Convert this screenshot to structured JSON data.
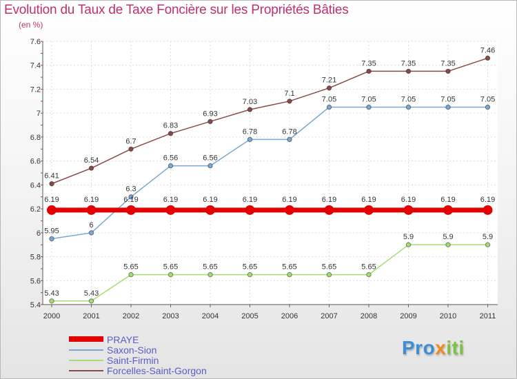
{
  "chart_data": {
    "type": "line",
    "title": "Evolution du Taux de Taxe Foncière sur les Propriétés Bâties",
    "unit_label": "(en %)",
    "xlabel": "",
    "ylabel": "",
    "categories": [
      "2000",
      "2001",
      "2002",
      "2003",
      "2004",
      "2005",
      "2006",
      "2007",
      "2008",
      "2009",
      "2010",
      "2011"
    ],
    "ylim": [
      5.4,
      7.6
    ],
    "yticks": [
      5.4,
      5.6,
      5.8,
      6,
      6.2,
      6.4,
      6.6,
      6.8,
      7,
      7.2,
      7.4,
      7.6
    ],
    "ytick_labels": [
      "5.4",
      "5.6",
      "5.8",
      "6",
      "6.2",
      "6.4",
      "6.6",
      "6.8",
      "7",
      "7.2",
      "7.4",
      "7.6"
    ],
    "legend_position": "bottom-left",
    "series": [
      {
        "name": "PRAYE",
        "color": "#e30000",
        "values": [
          6.19,
          6.19,
          6.19,
          6.19,
          6.19,
          6.19,
          6.19,
          6.19,
          6.19,
          6.19,
          6.19,
          6.19
        ],
        "labels": [
          "6.19",
          "6.19",
          "6.19",
          "6.19",
          "6.19",
          "6.19",
          "6.19",
          "6.19",
          "6.19",
          "6.19",
          "6.19",
          "6.19"
        ]
      },
      {
        "name": "Saxon-Sion",
        "color": "#7aa7d4",
        "values": [
          5.95,
          6,
          6.3,
          6.56,
          6.56,
          6.78,
          6.78,
          7.05,
          7.05,
          7.05,
          7.05,
          7.05
        ],
        "labels": [
          "5.95",
          "6",
          "6.3",
          "6.56",
          "6.56",
          "6.78",
          "6.78",
          "7.05",
          "7.05",
          "7.05",
          "7.05",
          "7.05"
        ]
      },
      {
        "name": "Saint-Firmin",
        "color": "#a6dc74",
        "values": [
          5.43,
          5.43,
          5.65,
          5.65,
          5.65,
          5.65,
          5.65,
          5.65,
          5.65,
          5.9,
          5.9,
          5.9
        ],
        "labels": [
          "5.43",
          "5.43",
          "5.65",
          "5.65",
          "5.65",
          "5.65",
          "5.65",
          "5.65",
          "5.65",
          "5.9",
          "5.9",
          "5.9"
        ]
      },
      {
        "name": "Forcelles-Saint-Gorgon",
        "color": "#8a4a4a",
        "values": [
          6.41,
          6.54,
          6.7,
          6.83,
          6.93,
          7.03,
          7.1,
          7.21,
          7.35,
          7.35,
          7.35,
          7.46
        ],
        "labels": [
          "6.41",
          "6.54",
          "6.7",
          "6.83",
          "6.93",
          "7.03",
          "7.1",
          "7.21",
          "7.35",
          "7.35",
          "7.35",
          "7.46"
        ]
      }
    ]
  },
  "logo": {
    "part1": "Pro",
    "part2": "x",
    "part3": "iti"
  }
}
